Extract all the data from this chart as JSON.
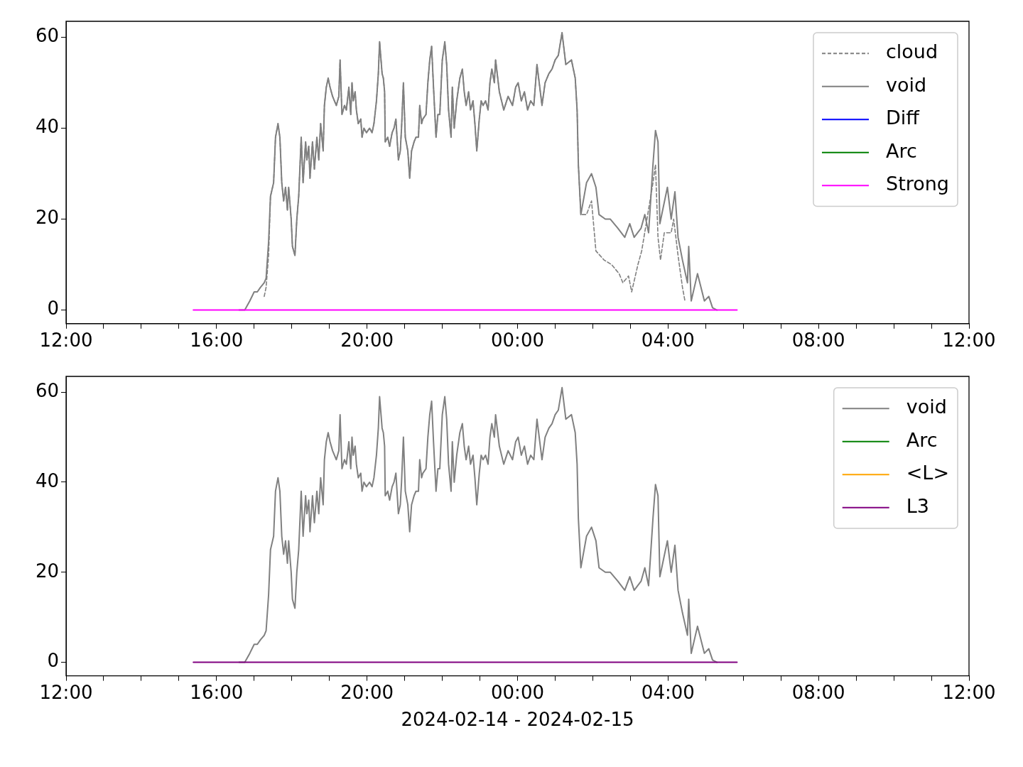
{
  "chart_data": [
    {
      "type": "line",
      "xlim": [
        "2024-02-14T12:00",
        "2024-02-15T12:00"
      ],
      "ylim": [
        -3,
        63.5
      ],
      "xticks": [
        {
          "value": "2024-02-14T12:00",
          "label": "12:00"
        },
        {
          "value": "2024-02-14T13:00",
          "label": null
        },
        {
          "value": "2024-02-14T14:00",
          "label": null
        },
        {
          "value": "2024-02-14T15:00",
          "label": null
        },
        {
          "value": "2024-02-14T16:00",
          "label": "16:00"
        },
        {
          "value": "2024-02-14T17:00",
          "label": null
        },
        {
          "value": "2024-02-14T18:00",
          "label": null
        },
        {
          "value": "2024-02-14T19:00",
          "label": null
        },
        {
          "value": "2024-02-14T20:00",
          "label": "20:00"
        },
        {
          "value": "2024-02-14T21:00",
          "label": null
        },
        {
          "value": "2024-02-14T22:00",
          "label": null
        },
        {
          "value": "2024-02-14T23:00",
          "label": null
        },
        {
          "value": "2024-02-15T00:00",
          "label": "00:00"
        },
        {
          "value": "2024-02-15T01:00",
          "label": null
        },
        {
          "value": "2024-02-15T02:00",
          "label": null
        },
        {
          "value": "2024-02-15T03:00",
          "label": null
        },
        {
          "value": "2024-02-15T04:00",
          "label": "04:00"
        },
        {
          "value": "2024-02-15T05:00",
          "label": null
        },
        {
          "value": "2024-02-15T06:00",
          "label": null
        },
        {
          "value": "2024-02-15T07:00",
          "label": null
        },
        {
          "value": "2024-02-15T08:00",
          "label": "08:00"
        },
        {
          "value": "2024-02-15T09:00",
          "label": null
        },
        {
          "value": "2024-02-15T10:00",
          "label": null
        },
        {
          "value": "2024-02-15T11:00",
          "label": null
        },
        {
          "value": "2024-02-15T12:00",
          "label": "12:00"
        }
      ],
      "yticks": [
        0,
        20,
        40,
        60
      ],
      "legend": "top right",
      "grid": false,
      "series": [
        {
          "name": "cloud",
          "color": "#808080",
          "line_style": "dashed",
          "x": [
            "2024-02-14T17:16",
            "2024-02-14T17:19",
            "2024-02-14T17:23",
            "2024-02-14T17:26",
            "2024-02-14T17:31",
            "2024-02-14T17:34",
            "2024-02-14T17:38",
            "2024-02-14T17:41",
            "2024-02-14T17:44",
            "2024-02-14T17:47",
            "2024-02-14T17:50",
            "2024-02-14T17:53",
            "2024-02-14T17:55",
            "2024-02-14T17:59",
            "2024-02-14T18:01",
            "2024-02-14T18:05",
            "2024-02-14T18:08",
            "2024-02-14T18:11",
            "2024-02-14T18:15",
            "2024-02-14T18:18",
            "2024-02-14T18:22",
            "2024-02-14T18:24",
            "2024-02-14T18:27",
            "2024-02-14T18:29",
            "2024-02-14T18:33",
            "2024-02-14T18:36",
            "2024-02-14T18:40",
            "2024-02-14T18:43",
            "2024-02-14T18:46",
            "2024-02-14T18:50",
            "2024-02-14T18:52",
            "2024-02-14T18:55",
            "2024-02-14T18:58",
            "2024-02-14T19:01",
            "2024-02-14T19:05",
            "2024-02-14T19:08",
            "2024-02-14T19:11",
            "2024-02-14T19:15",
            "2024-02-14T19:17",
            "2024-02-14T19:20",
            "2024-02-14T19:24",
            "2024-02-14T19:27",
            "2024-02-14T19:31",
            "2024-02-14T19:34",
            "2024-02-14T19:36",
            "2024-02-14T19:38",
            "2024-02-14T19:41",
            "2024-02-14T19:43",
            "2024-02-14T19:46",
            "2024-02-14T19:50",
            "2024-02-14T19:52",
            "2024-02-14T19:55",
            "2024-02-14T19:59",
            "2024-02-14T20:04",
            "2024-02-14T20:08",
            "2024-02-14T20:11",
            "2024-02-14T20:15",
            "2024-02-14T20:18",
            "2024-02-14T20:20",
            "2024-02-14T20:24",
            "2024-02-14T20:26",
            "2024-02-14T20:28",
            "2024-02-14T20:29",
            "2024-02-14T20:33",
            "2024-02-14T20:36",
            "2024-02-14T20:40",
            "2024-02-14T20:43",
            "2024-02-14T20:46",
            "2024-02-14T20:50",
            "2024-02-14T20:53",
            "2024-02-14T20:55",
            "2024-02-14T20:58",
            "2024-02-14T21:01",
            "2024-02-14T21:05",
            "2024-02-14T21:08",
            "2024-02-14T21:11",
            "2024-02-14T21:15",
            "2024-02-14T21:18",
            "2024-02-14T21:22",
            "2024-02-14T21:24",
            "2024-02-14T21:27",
            "2024-02-14T21:29",
            "2024-02-14T21:34",
            "2024-02-14T21:37",
            "2024-02-14T21:40",
            "2024-02-14T21:43",
            "2024-02-14T21:46",
            "2024-02-14T21:50",
            "2024-02-14T21:53",
            "2024-02-14T21:56",
            "2024-02-14T22:00",
            "2024-02-14T22:04",
            "2024-02-14T22:07",
            "2024-02-14T22:10",
            "2024-02-14T22:14",
            "2024-02-14T22:16",
            "2024-02-14T22:19",
            "2024-02-14T22:23",
            "2024-02-14T22:26",
            "2024-02-14T22:28",
            "2024-02-14T22:32",
            "2024-02-14T22:35",
            "2024-02-14T22:38",
            "2024-02-14T22:42",
            "2024-02-14T22:45",
            "2024-02-14T22:49",
            "2024-02-14T22:52",
            "2024-02-14T22:55",
            "2024-02-14T22:59",
            "2024-02-14T23:02",
            "2024-02-14T23:05",
            "2024-02-14T23:09",
            "2024-02-14T23:13",
            "2024-02-14T23:16",
            "2024-02-14T23:19",
            "2024-02-14T23:23",
            "2024-02-14T23:25",
            "2024-02-14T23:31",
            "2024-02-14T23:38",
            "2024-02-14T23:45",
            "2024-02-14T23:52",
            "2024-02-14T23:57",
            "2024-02-15T00:01",
            "2024-02-15T00:06",
            "2024-02-15T00:11",
            "2024-02-15T00:16",
            "2024-02-15T00:21",
            "2024-02-15T00:26",
            "2024-02-15T00:31",
            "2024-02-15T00:39",
            "2024-02-15T00:44",
            "2024-02-15T00:50",
            "2024-02-15T00:55",
            "2024-02-15T01:00",
            "2024-02-15T01:05",
            "2024-02-15T01:11",
            "2024-02-15T01:17",
            "2024-02-15T01:26",
            "2024-02-15T01:32",
            "2024-02-15T01:35",
            "2024-02-15T01:37",
            "2024-02-15T01:41",
            "2024-02-15T01:50",
            "2024-02-15T01:58",
            "2024-02-15T02:05",
            "2024-02-15T02:18",
            "2024-02-15T02:30",
            "2024-02-15T02:42",
            "2024-02-15T02:48",
            "2024-02-15T02:57",
            "2024-02-15T03:02",
            "2024-02-15T03:12",
            "2024-02-15T03:18",
            "2024-02-15T03:24",
            "2024-02-15T03:36",
            "2024-02-15T03:40",
            "2024-02-15T03:44",
            "2024-02-15T03:48",
            "2024-02-15T03:54",
            "2024-02-15T04:05",
            "2024-02-15T04:09",
            "2024-02-15T04:16",
            "2024-02-15T04:23",
            "2024-02-15T04:27"
          ],
          "values": [
            3,
            5,
            12,
            25,
            28,
            38,
            41,
            38,
            28,
            24,
            27,
            22,
            27,
            20,
            14,
            12,
            20,
            25,
            38,
            28,
            37,
            33,
            36,
            29,
            37,
            31,
            38,
            33,
            41,
            35,
            45,
            49,
            51,
            49,
            47,
            46,
            45,
            47,
            55,
            43,
            45,
            44,
            49,
            43,
            50,
            46,
            48,
            44,
            41,
            42,
            38,
            40,
            39,
            40,
            39,
            41,
            46,
            52,
            59,
            52,
            51,
            48,
            37,
            38,
            36,
            39,
            40,
            42,
            33,
            35,
            40,
            50,
            38,
            35,
            29,
            35,
            37,
            38,
            38,
            45,
            41,
            42,
            43,
            50,
            55,
            58,
            49,
            38,
            43,
            43,
            55,
            59,
            54,
            44,
            38,
            49,
            40,
            46,
            49,
            51,
            53,
            48,
            45,
            48,
            44,
            46,
            41,
            35,
            42,
            46,
            45,
            46,
            44,
            50,
            53,
            50,
            55,
            48,
            44,
            47,
            45,
            49,
            50,
            46,
            48,
            44,
            46,
            45,
            54,
            45,
            50,
            52,
            53,
            55,
            56,
            61,
            54,
            55,
            51,
            44,
            32,
            21,
            21,
            24,
            13,
            11,
            10,
            8,
            6,
            7.5,
            4,
            10,
            13,
            18,
            28,
            32,
            16,
            11,
            17,
            17,
            20,
            12,
            5,
            2
          ]
        },
        {
          "name": "void",
          "color": "#808080",
          "line_style": "solid",
          "x": [
            "2024-02-14T16:36",
            "2024-02-14T16:45",
            "2024-02-14T16:53",
            "2024-02-14T17:00",
            "2024-02-14T17:05",
            "2024-02-14T17:10",
            "2024-02-14T17:16",
            "2024-02-14T17:19",
            "2024-02-14T17:23",
            "2024-02-14T17:26",
            "2024-02-14T17:31",
            "2024-02-14T17:34",
            "2024-02-14T17:38",
            "2024-02-14T17:41",
            "2024-02-14T17:44",
            "2024-02-14T17:47",
            "2024-02-14T17:50",
            "2024-02-14T17:53",
            "2024-02-14T17:55",
            "2024-02-14T17:59",
            "2024-02-14T18:01",
            "2024-02-14T18:05",
            "2024-02-14T18:08",
            "2024-02-14T18:11",
            "2024-02-14T18:15",
            "2024-02-14T18:18",
            "2024-02-14T18:22",
            "2024-02-14T18:24",
            "2024-02-14T18:27",
            "2024-02-14T18:29",
            "2024-02-14T18:33",
            "2024-02-14T18:36",
            "2024-02-14T18:40",
            "2024-02-14T18:43",
            "2024-02-14T18:46",
            "2024-02-14T18:50",
            "2024-02-14T18:52",
            "2024-02-14T18:55",
            "2024-02-14T18:58",
            "2024-02-14T19:01",
            "2024-02-14T19:05",
            "2024-02-14T19:08",
            "2024-02-14T19:11",
            "2024-02-14T19:15",
            "2024-02-14T19:17",
            "2024-02-14T19:20",
            "2024-02-14T19:24",
            "2024-02-14T19:27",
            "2024-02-14T19:31",
            "2024-02-14T19:34",
            "2024-02-14T19:36",
            "2024-02-14T19:38",
            "2024-02-14T19:41",
            "2024-02-14T19:43",
            "2024-02-14T19:46",
            "2024-02-14T19:50",
            "2024-02-14T19:52",
            "2024-02-14T19:55",
            "2024-02-14T19:59",
            "2024-02-14T20:04",
            "2024-02-14T20:08",
            "2024-02-14T20:11",
            "2024-02-14T20:15",
            "2024-02-14T20:18",
            "2024-02-14T20:20",
            "2024-02-14T20:24",
            "2024-02-14T20:26",
            "2024-02-14T20:28",
            "2024-02-14T20:29",
            "2024-02-14T20:33",
            "2024-02-14T20:36",
            "2024-02-14T20:40",
            "2024-02-14T20:43",
            "2024-02-14T20:46",
            "2024-02-14T20:50",
            "2024-02-14T20:53",
            "2024-02-14T20:55",
            "2024-02-14T20:58",
            "2024-02-14T21:01",
            "2024-02-14T21:05",
            "2024-02-14T21:08",
            "2024-02-14T21:11",
            "2024-02-14T21:15",
            "2024-02-14T21:18",
            "2024-02-14T21:22",
            "2024-02-14T21:24",
            "2024-02-14T21:27",
            "2024-02-14T21:29",
            "2024-02-14T21:34",
            "2024-02-14T21:37",
            "2024-02-14T21:40",
            "2024-02-14T21:43",
            "2024-02-14T21:46",
            "2024-02-14T21:50",
            "2024-02-14T21:53",
            "2024-02-14T21:56",
            "2024-02-14T22:00",
            "2024-02-14T22:04",
            "2024-02-14T22:07",
            "2024-02-14T22:10",
            "2024-02-14T22:14",
            "2024-02-14T22:16",
            "2024-02-14T22:19",
            "2024-02-14T22:23",
            "2024-02-14T22:26",
            "2024-02-14T22:28",
            "2024-02-14T22:32",
            "2024-02-14T22:35",
            "2024-02-14T22:38",
            "2024-02-14T22:42",
            "2024-02-14T22:45",
            "2024-02-14T22:49",
            "2024-02-14T22:52",
            "2024-02-14T22:55",
            "2024-02-14T22:59",
            "2024-02-14T23:02",
            "2024-02-14T23:05",
            "2024-02-14T23:09",
            "2024-02-14T23:13",
            "2024-02-14T23:16",
            "2024-02-14T23:19",
            "2024-02-14T23:23",
            "2024-02-14T23:25",
            "2024-02-14T23:31",
            "2024-02-14T23:38",
            "2024-02-14T23:45",
            "2024-02-14T23:52",
            "2024-02-14T23:57",
            "2024-02-15T00:01",
            "2024-02-15T00:06",
            "2024-02-15T00:11",
            "2024-02-15T00:16",
            "2024-02-15T00:21",
            "2024-02-15T00:26",
            "2024-02-15T00:31",
            "2024-02-15T00:39",
            "2024-02-15T00:44",
            "2024-02-15T00:50",
            "2024-02-15T00:55",
            "2024-02-15T01:00",
            "2024-02-15T01:05",
            "2024-02-15T01:11",
            "2024-02-15T01:17",
            "2024-02-15T01:26",
            "2024-02-15T01:32",
            "2024-02-15T01:35",
            "2024-02-15T01:37",
            "2024-02-15T01:41",
            "2024-02-15T01:50",
            "2024-02-15T01:58",
            "2024-02-15T02:05",
            "2024-02-15T02:10",
            "2024-02-15T02:20",
            "2024-02-15T02:28",
            "2024-02-15T02:40",
            "2024-02-15T02:51",
            "2024-02-15T02:59",
            "2024-02-15T03:06",
            "2024-02-15T03:17",
            "2024-02-15T03:23",
            "2024-02-15T03:29",
            "2024-02-15T03:36",
            "2024-02-15T03:40",
            "2024-02-15T03:44",
            "2024-02-15T03:47",
            "2024-02-15T03:53",
            "2024-02-15T03:59",
            "2024-02-15T04:05",
            "2024-02-15T04:11",
            "2024-02-15T04:16",
            "2024-02-15T04:23",
            "2024-02-15T04:31",
            "2024-02-15T04:33",
            "2024-02-15T04:37",
            "2024-02-15T04:47",
            "2024-02-15T04:58",
            "2024-02-15T05:05",
            "2024-02-15T05:11",
            "2024-02-15T05:18"
          ],
          "values": [
            0,
            0,
            2,
            4,
            4,
            5,
            6,
            7,
            15,
            25,
            28,
            38,
            41,
            38,
            28,
            24,
            27,
            22,
            27,
            20,
            14,
            12,
            20,
            25,
            38,
            28,
            37,
            33,
            36,
            29,
            37,
            31,
            38,
            33,
            41,
            35,
            45,
            49,
            51,
            49,
            47,
            46,
            45,
            47,
            55,
            43,
            45,
            44,
            49,
            43,
            50,
            46,
            48,
            44,
            41,
            42,
            38,
            40,
            39,
            40,
            39,
            41,
            46,
            52,
            59,
            52,
            51,
            48,
            37,
            38,
            36,
            39,
            40,
            42,
            33,
            35,
            40,
            50,
            38,
            35,
            29,
            35,
            37,
            38,
            38,
            45,
            41,
            42,
            43,
            50,
            55,
            58,
            49,
            38,
            43,
            43,
            55,
            59,
            54,
            44,
            38,
            49,
            40,
            46,
            49,
            51,
            53,
            48,
            45,
            48,
            44,
            46,
            41,
            35,
            42,
            46,
            45,
            46,
            44,
            50,
            53,
            50,
            55,
            48,
            44,
            47,
            45,
            49,
            50,
            46,
            48,
            44,
            46,
            45,
            54,
            45,
            50,
            52,
            53,
            55,
            56,
            61,
            54,
            55,
            51,
            44,
            32,
            21,
            28,
            30,
            27,
            21,
            20,
            20,
            18,
            16,
            19,
            16,
            18,
            21,
            17,
            32,
            39.5,
            37,
            19,
            23,
            27,
            20,
            26,
            16,
            11,
            6,
            14,
            2,
            8,
            2,
            3,
            0.5,
            0
          ]
        },
        {
          "name": "Diff",
          "color": "#0000ff",
          "line_style": "solid"
        },
        {
          "name": "Arc",
          "color": "#008000",
          "line_style": "solid"
        },
        {
          "name": "Strong",
          "color": "#ff00ff",
          "line_style": "solid",
          "x": [
            "2024-02-14T15:23",
            "2024-02-15T05:50"
          ],
          "values": [
            0,
            0
          ]
        }
      ]
    },
    {
      "type": "line",
      "xlim": [
        "2024-02-14T12:00",
        "2024-02-15T12:00"
      ],
      "ylim": [
        -3,
        63.5
      ],
      "xlabel": "2024-02-14 - 2024-02-15",
      "xticks": [
        {
          "value": "2024-02-14T12:00",
          "label": "12:00"
        },
        {
          "value": "2024-02-14T13:00",
          "label": null
        },
        {
          "value": "2024-02-14T14:00",
          "label": null
        },
        {
          "value": "2024-02-14T15:00",
          "label": null
        },
        {
          "value": "2024-02-14T16:00",
          "label": "16:00"
        },
        {
          "value": "2024-02-14T17:00",
          "label": null
        },
        {
          "value": "2024-02-14T18:00",
          "label": null
        },
        {
          "value": "2024-02-14T19:00",
          "label": null
        },
        {
          "value": "2024-02-14T20:00",
          "label": "20:00"
        },
        {
          "value": "2024-02-14T21:00",
          "label": null
        },
        {
          "value": "2024-02-14T22:00",
          "label": null
        },
        {
          "value": "2024-02-14T23:00",
          "label": null
        },
        {
          "value": "2024-02-15T00:00",
          "label": "00:00"
        },
        {
          "value": "2024-02-15T01:00",
          "label": null
        },
        {
          "value": "2024-02-15T02:00",
          "label": null
        },
        {
          "value": "2024-02-15T03:00",
          "label": null
        },
        {
          "value": "2024-02-15T04:00",
          "label": "04:00"
        },
        {
          "value": "2024-02-15T05:00",
          "label": null
        },
        {
          "value": "2024-02-15T06:00",
          "label": null
        },
        {
          "value": "2024-02-15T07:00",
          "label": null
        },
        {
          "value": "2024-02-15T08:00",
          "label": "08:00"
        },
        {
          "value": "2024-02-15T09:00",
          "label": null
        },
        {
          "value": "2024-02-15T10:00",
          "label": null
        },
        {
          "value": "2024-02-15T11:00",
          "label": null
        },
        {
          "value": "2024-02-15T12:00",
          "label": "12:00"
        }
      ],
      "yticks": [
        0,
        20,
        40,
        60
      ],
      "legend": "top right",
      "grid": false,
      "series": [
        {
          "name": "void",
          "color": "#808080",
          "line_style": "solid",
          "x": [
            "2024-02-14T16:36",
            "2024-02-14T16:45",
            "2024-02-14T16:53",
            "2024-02-14T17:00",
            "2024-02-14T17:05",
            "2024-02-14T17:10",
            "2024-02-14T17:16",
            "2024-02-14T17:19",
            "2024-02-14T17:23",
            "2024-02-14T17:26",
            "2024-02-14T17:31",
            "2024-02-14T17:34",
            "2024-02-14T17:38",
            "2024-02-14T17:41",
            "2024-02-14T17:44",
            "2024-02-14T17:47",
            "2024-02-14T17:50",
            "2024-02-14T17:53",
            "2024-02-14T17:55",
            "2024-02-14T17:59",
            "2024-02-14T18:01",
            "2024-02-14T18:05",
            "2024-02-14T18:08",
            "2024-02-14T18:11",
            "2024-02-14T18:15",
            "2024-02-14T18:18",
            "2024-02-14T18:22",
            "2024-02-14T18:24",
            "2024-02-14T18:27",
            "2024-02-14T18:29",
            "2024-02-14T18:33",
            "2024-02-14T18:36",
            "2024-02-14T18:40",
            "2024-02-14T18:43",
            "2024-02-14T18:46",
            "2024-02-14T18:50",
            "2024-02-14T18:52",
            "2024-02-14T18:55",
            "2024-02-14T18:58",
            "2024-02-14T19:01",
            "2024-02-14T19:05",
            "2024-02-14T19:08",
            "2024-02-14T19:11",
            "2024-02-14T19:15",
            "2024-02-14T19:17",
            "2024-02-14T19:20",
            "2024-02-14T19:24",
            "2024-02-14T19:27",
            "2024-02-14T19:31",
            "2024-02-14T19:34",
            "2024-02-14T19:36",
            "2024-02-14T19:38",
            "2024-02-14T19:41",
            "2024-02-14T19:43",
            "2024-02-14T19:46",
            "2024-02-14T19:50",
            "2024-02-14T19:52",
            "2024-02-14T19:55",
            "2024-02-14T19:59",
            "2024-02-14T20:04",
            "2024-02-14T20:08",
            "2024-02-14T20:11",
            "2024-02-14T20:15",
            "2024-02-14T20:18",
            "2024-02-14T20:20",
            "2024-02-14T20:24",
            "2024-02-14T20:26",
            "2024-02-14T20:28",
            "2024-02-14T20:29",
            "2024-02-14T20:33",
            "2024-02-14T20:36",
            "2024-02-14T20:40",
            "2024-02-14T20:43",
            "2024-02-14T20:46",
            "2024-02-14T20:50",
            "2024-02-14T20:53",
            "2024-02-14T20:55",
            "2024-02-14T20:58",
            "2024-02-14T21:01",
            "2024-02-14T21:05",
            "2024-02-14T21:08",
            "2024-02-14T21:11",
            "2024-02-14T21:15",
            "2024-02-14T21:18",
            "2024-02-14T21:22",
            "2024-02-14T21:24",
            "2024-02-14T21:27",
            "2024-02-14T21:29",
            "2024-02-14T21:34",
            "2024-02-14T21:37",
            "2024-02-14T21:40",
            "2024-02-14T21:43",
            "2024-02-14T21:46",
            "2024-02-14T21:50",
            "2024-02-14T21:53",
            "2024-02-14T21:56",
            "2024-02-14T22:00",
            "2024-02-14T22:04",
            "2024-02-14T22:07",
            "2024-02-14T22:10",
            "2024-02-14T22:14",
            "2024-02-14T22:16",
            "2024-02-14T22:19",
            "2024-02-14T22:23",
            "2024-02-14T22:26",
            "2024-02-14T22:28",
            "2024-02-14T22:32",
            "2024-02-14T22:35",
            "2024-02-14T22:38",
            "2024-02-14T22:42",
            "2024-02-14T22:45",
            "2024-02-14T22:49",
            "2024-02-14T22:52",
            "2024-02-14T22:55",
            "2024-02-14T22:59",
            "2024-02-14T23:02",
            "2024-02-14T23:05",
            "2024-02-14T23:09",
            "2024-02-14T23:13",
            "2024-02-14T23:16",
            "2024-02-14T23:19",
            "2024-02-14T23:23",
            "2024-02-14T23:25",
            "2024-02-14T23:31",
            "2024-02-14T23:38",
            "2024-02-14T23:45",
            "2024-02-14T23:52",
            "2024-02-14T23:57",
            "2024-02-15T00:01",
            "2024-02-15T00:06",
            "2024-02-15T00:11",
            "2024-02-15T00:16",
            "2024-02-15T00:21",
            "2024-02-15T00:26",
            "2024-02-15T00:31",
            "2024-02-15T00:39",
            "2024-02-15T00:44",
            "2024-02-15T00:50",
            "2024-02-15T00:55",
            "2024-02-15T01:00",
            "2024-02-15T01:05",
            "2024-02-15T01:11",
            "2024-02-15T01:17",
            "2024-02-15T01:26",
            "2024-02-15T01:32",
            "2024-02-15T01:35",
            "2024-02-15T01:37",
            "2024-02-15T01:41",
            "2024-02-15T01:50",
            "2024-02-15T01:58",
            "2024-02-15T02:05",
            "2024-02-15T02:10",
            "2024-02-15T02:20",
            "2024-02-15T02:28",
            "2024-02-15T02:40",
            "2024-02-15T02:51",
            "2024-02-15T02:59",
            "2024-02-15T03:06",
            "2024-02-15T03:17",
            "2024-02-15T03:23",
            "2024-02-15T03:29",
            "2024-02-15T03:36",
            "2024-02-15T03:40",
            "2024-02-15T03:44",
            "2024-02-15T03:47",
            "2024-02-15T03:53",
            "2024-02-15T03:59",
            "2024-02-15T04:05",
            "2024-02-15T04:11",
            "2024-02-15T04:16",
            "2024-02-15T04:23",
            "2024-02-15T04:31",
            "2024-02-15T04:33",
            "2024-02-15T04:37",
            "2024-02-15T04:47",
            "2024-02-15T04:58",
            "2024-02-15T05:05",
            "2024-02-15T05:11",
            "2024-02-15T05:18"
          ],
          "values": [
            0,
            0,
            2,
            4,
            4,
            5,
            6,
            7,
            15,
            25,
            28,
            38,
            41,
            38,
            28,
            24,
            27,
            22,
            27,
            20,
            14,
            12,
            20,
            25,
            38,
            28,
            37,
            33,
            36,
            29,
            37,
            31,
            38,
            33,
            41,
            35,
            45,
            49,
            51,
            49,
            47,
            46,
            45,
            47,
            55,
            43,
            45,
            44,
            49,
            43,
            50,
            46,
            48,
            44,
            41,
            42,
            38,
            40,
            39,
            40,
            39,
            41,
            46,
            52,
            59,
            52,
            51,
            48,
            37,
            38,
            36,
            39,
            40,
            42,
            33,
            35,
            40,
            50,
            38,
            35,
            29,
            35,
            37,
            38,
            38,
            45,
            41,
            42,
            43,
            50,
            55,
            58,
            49,
            38,
            43,
            43,
            55,
            59,
            54,
            44,
            38,
            49,
            40,
            46,
            49,
            51,
            53,
            48,
            45,
            48,
            44,
            46,
            41,
            35,
            42,
            46,
            45,
            46,
            44,
            50,
            53,
            50,
            55,
            48,
            44,
            47,
            45,
            49,
            50,
            46,
            48,
            44,
            46,
            45,
            54,
            45,
            50,
            52,
            53,
            55,
            56,
            61,
            54,
            55,
            51,
            44,
            32,
            21,
            28,
            30,
            27,
            21,
            20,
            20,
            18,
            16,
            19,
            16,
            18,
            21,
            17,
            32,
            39.5,
            37,
            19,
            23,
            27,
            20,
            26,
            16,
            11,
            6,
            14,
            2,
            8,
            2,
            3,
            0.5,
            0
          ]
        },
        {
          "name": "Arc",
          "color": "#008000",
          "line_style": "solid"
        },
        {
          "name": "<L>",
          "color": "#ffa500",
          "line_style": "solid"
        },
        {
          "name": "L3",
          "color": "#800080",
          "line_style": "solid",
          "x": [
            "2024-02-14T15:23",
            "2024-02-15T05:50"
          ],
          "values": [
            0,
            0
          ]
        }
      ]
    }
  ]
}
